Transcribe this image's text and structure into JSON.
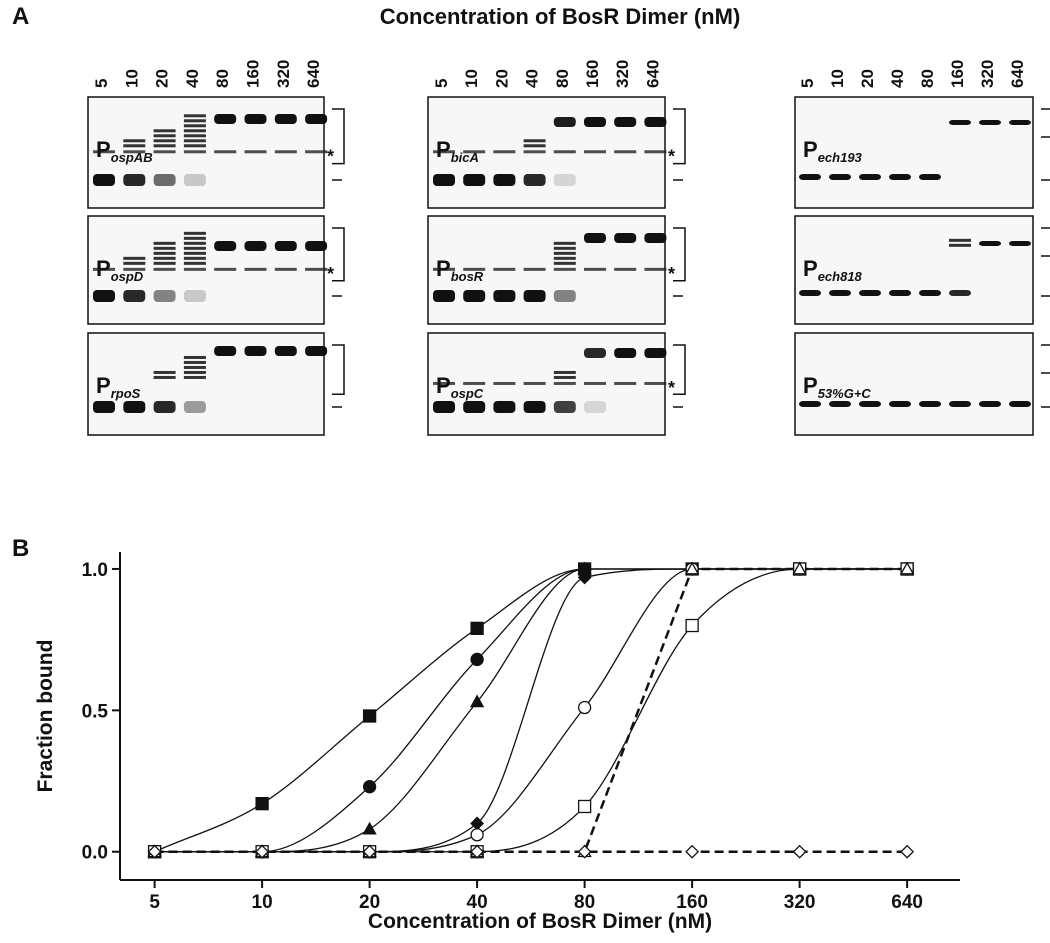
{
  "panel_a": {
    "label": "A",
    "title": "Concentration of BosR Dimer (nM)",
    "lanes": [
      "5",
      "10",
      "20",
      "40",
      "80",
      "160",
      "320",
      "640"
    ],
    "gels": [
      {
        "name": "P",
        "subscript": "ospAB",
        "marker": "*"
      },
      {
        "name": "P",
        "subscript": "ospD",
        "marker": "*"
      },
      {
        "name": "P",
        "subscript": "rpoS"
      },
      {
        "name": "P",
        "subscript": "bicA",
        "marker": "*"
      },
      {
        "name": "P",
        "subscript": "bosR",
        "marker": "*"
      },
      {
        "name": "P",
        "subscript": "ospC",
        "marker": "*"
      },
      {
        "name": "P",
        "subscript": "ech193"
      },
      {
        "name": "P",
        "subscript": "ech818"
      },
      {
        "name": "P",
        "subscript": "53%G+C"
      }
    ]
  },
  "chart_data": {
    "type": "scatter",
    "label": "B",
    "xlabel": "Concentration of BosR Dimer (nM)",
    "ylabel": "Fraction bound",
    "x": [
      5,
      10,
      20,
      40,
      80,
      160,
      320,
      640
    ],
    "log_x": true,
    "xlim": [
      4,
      900
    ],
    "ylim": [
      -0.1,
      1.06
    ],
    "xticks": [
      5,
      10,
      20,
      40,
      80,
      160,
      320,
      640
    ],
    "yticks": [
      {
        "value": 0,
        "label": "0.0"
      },
      {
        "value": 0.5,
        "label": "0.5"
      },
      {
        "value": 1,
        "label": "1.0"
      }
    ],
    "series": [
      {
        "marker": "square",
        "filled": true,
        "line": "solid",
        "color": "#111111",
        "values": [
          0,
          0.17,
          0.48,
          0.79,
          1,
          1,
          1,
          1
        ]
      },
      {
        "marker": "circle",
        "filled": true,
        "line": "solid",
        "color": "#111111",
        "values": [
          0,
          0,
          0.23,
          0.68,
          1,
          1,
          1,
          1
        ]
      },
      {
        "marker": "triangle",
        "filled": true,
        "line": "solid",
        "color": "#111111",
        "values": [
          0,
          0,
          0.08,
          0.53,
          1,
          1,
          1,
          1
        ]
      },
      {
        "marker": "diamond",
        "filled": true,
        "line": "solid",
        "color": "#111111",
        "values": [
          0,
          0,
          0,
          0.1,
          0.97,
          1,
          1,
          1
        ]
      },
      {
        "marker": "circle",
        "filled": false,
        "line": "solid",
        "color": "#111111",
        "values": [
          0,
          0,
          0,
          0.06,
          0.51,
          1,
          1,
          1
        ]
      },
      {
        "marker": "square",
        "filled": false,
        "line": "solid",
        "color": "#111111",
        "values": [
          0,
          0,
          0,
          0,
          0.16,
          0.8,
          1,
          1
        ]
      },
      {
        "marker": "triangle",
        "filled": false,
        "line": "dashed",
        "color": "#111111",
        "values": [
          0,
          0,
          0,
          0,
          0,
          1,
          1,
          1
        ]
      },
      {
        "marker": "diamond",
        "filled": false,
        "line": "dashed",
        "color": "#111111",
        "values": [
          0,
          0,
          0,
          0,
          0,
          0,
          0,
          0
        ]
      }
    ]
  }
}
